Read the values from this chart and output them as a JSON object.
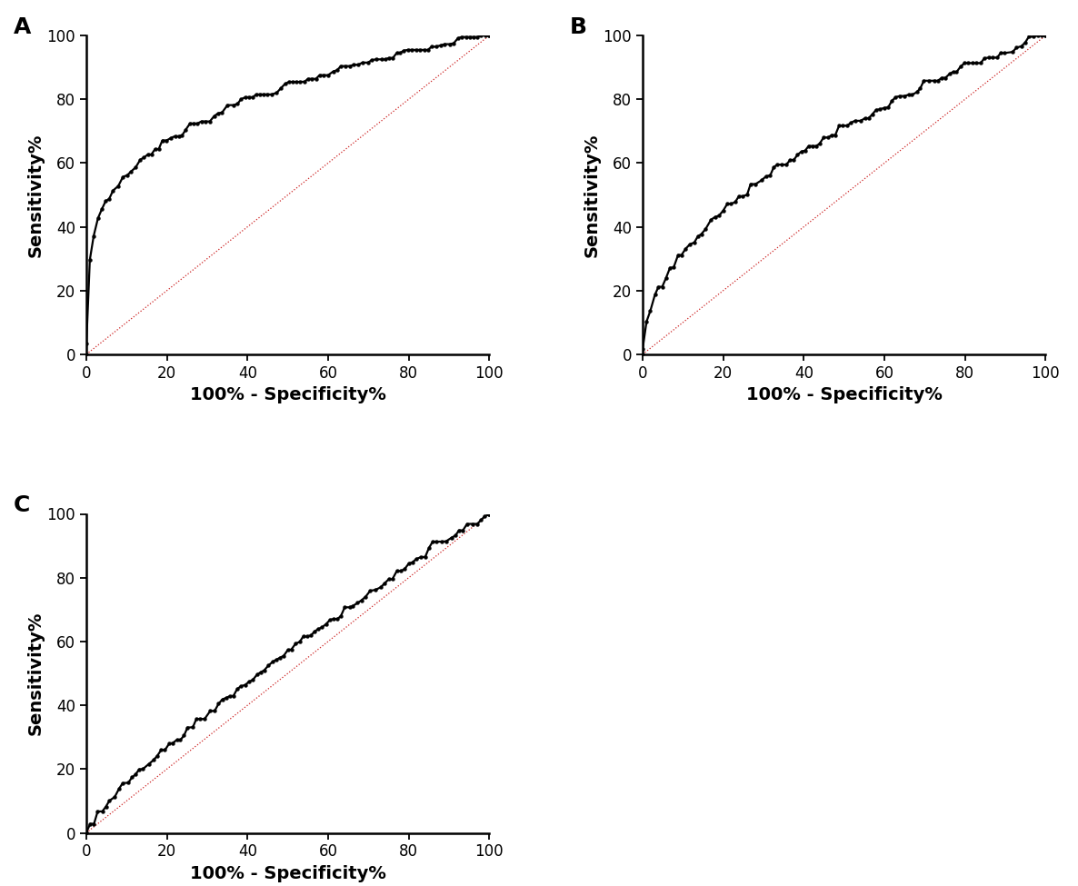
{
  "panel_labels": [
    "A",
    "B",
    "C"
  ],
  "xlabel": "100% - Specificity%",
  "ylabel": "Sensitivity%",
  "xlim": [
    0,
    100
  ],
  "ylim": [
    0,
    100
  ],
  "xticks": [
    0,
    20,
    40,
    60,
    80,
    100
  ],
  "yticks": [
    0,
    20,
    40,
    60,
    80,
    100
  ],
  "curve_color": "#000000",
  "diagonal_color": "#cc2222",
  "background_color": "#ffffff",
  "curve_linewidth": 1.6,
  "diagonal_linewidth": 0.9,
  "marker_size": 2.8,
  "label_fontsize": 14,
  "panel_label_fontsize": 18,
  "tick_fontsize": 12,
  "roc_A_power": 0.25,
  "roc_B_power": 0.5,
  "roc_C_power": 0.82,
  "n_points": 100
}
